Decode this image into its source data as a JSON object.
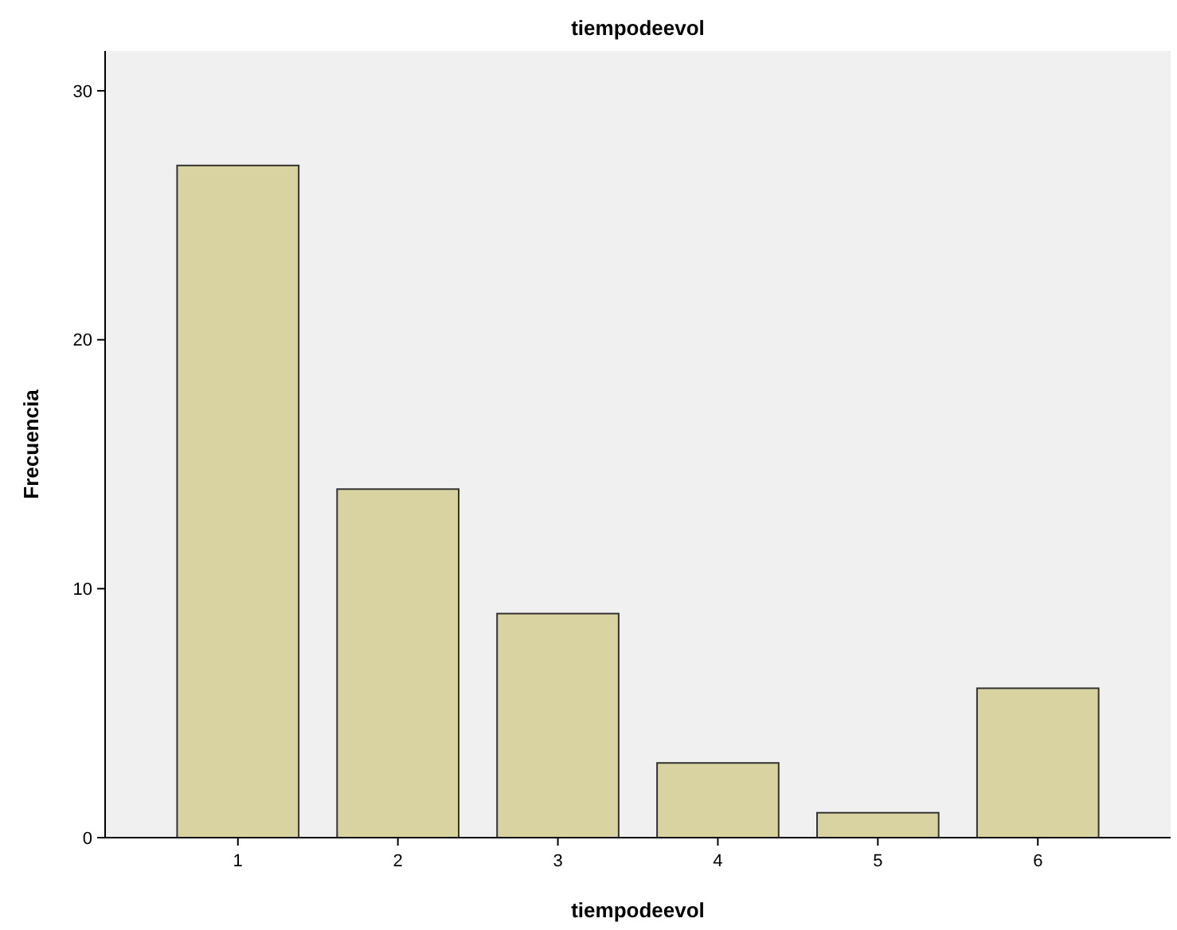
{
  "chart_data": {
    "type": "bar",
    "title": "tiempodeevol",
    "xlabel": "tiempodeevol",
    "ylabel": "Frecuencia",
    "categories": [
      "1",
      "2",
      "3",
      "4",
      "5",
      "6"
    ],
    "values": [
      27,
      14,
      9,
      3,
      1,
      6
    ],
    "color": "#d9d3a1",
    "ylim": [
      0,
      31.6
    ],
    "yticks": [
      0,
      10,
      20,
      30
    ],
    "grid": false
  }
}
